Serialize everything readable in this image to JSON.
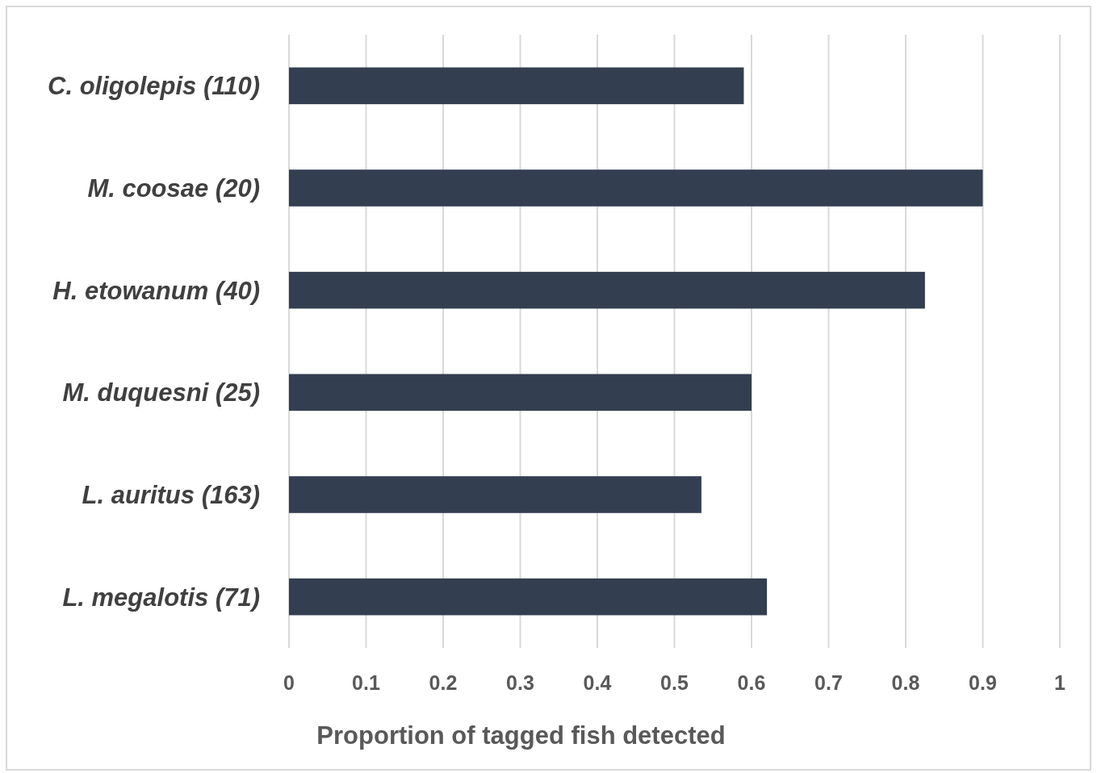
{
  "chart_data": {
    "type": "bar",
    "orientation": "horizontal",
    "xlabel": "Proportion of tagged fish detected",
    "categories": [
      "C. oligolepis (110)",
      "M. coosae (20)",
      "H. etowanum (40)",
      "M. duquesni (25)",
      "L. auritus (163)",
      "L. megalotis (71)"
    ],
    "values": [
      0.59,
      0.9,
      0.825,
      0.6,
      0.535,
      0.62
    ],
    "color": "#333f50",
    "xlim": [
      0,
      1
    ],
    "xticks": [
      0,
      0.1,
      0.2,
      0.3,
      0.4,
      0.5,
      0.6,
      0.7,
      0.8,
      0.9,
      1
    ],
    "grid": "x"
  }
}
